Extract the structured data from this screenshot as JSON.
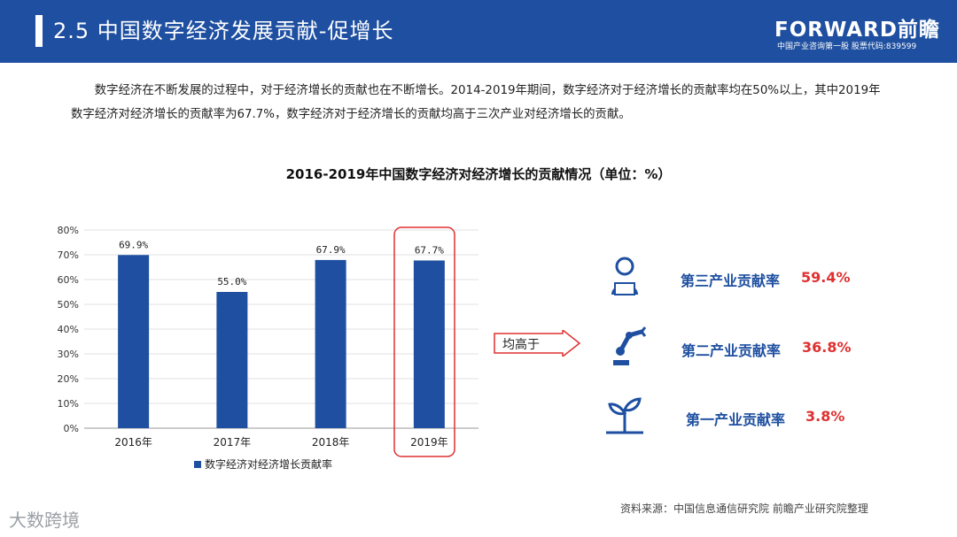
{
  "header": {
    "title": "2.5 中国数字经济发展贡献-促增长"
  },
  "logo": {
    "name": "FORWARD前瞻",
    "tagline": "中国产业咨询第一股 股票代码:839599"
  },
  "intro": "数字经济在不断发展的过程中，对于经济增长的贡献也在不断增长。2014-2019年期间，数字经济对于经济增长的贡献率均在50%以上，其中2019年数字经济对经济增长的贡献率为67.7%，数字经济对于经济增长的贡献均高于三次产业对经济增长的贡献。",
  "chart_data": {
    "type": "bar",
    "title": "2016-2019年中国数字经济对经济增长的贡献情况（单位：%）",
    "categories": [
      "2016年",
      "2017年",
      "2018年",
      "2019年"
    ],
    "series": [
      {
        "name": "数字经济对经济增长贡献率",
        "values": [
          69.9,
          55.0,
          67.9,
          67.7
        ]
      }
    ],
    "data_labels": [
      "69.9%",
      "55.0%",
      "67.9%",
      "67.7%"
    ],
    "ylim": [
      0,
      80
    ],
    "yticks": [
      "0%",
      "10%",
      "20%",
      "30%",
      "40%",
      "50%",
      "60%",
      "70%",
      "80%"
    ],
    "grid": true,
    "legend": "bottom",
    "highlight": "2019年",
    "bar_color": "#1e4fa0"
  },
  "compare": {
    "arrow_label": "均高于",
    "items": [
      {
        "label": "第三产业贡献率",
        "value": "59.4%",
        "icon": "worker-laptop-icon"
      },
      {
        "label": "第二产业贡献率",
        "value": "36.8%",
        "icon": "robot-arm-icon"
      },
      {
        "label": "第一产业贡献率",
        "value": "3.8%",
        "icon": "plant-sprout-icon"
      }
    ]
  },
  "source": "资料来源：中国信息通信研究院 前瞻产业研究院整理",
  "watermark": "大数跨境",
  "colors": {
    "primary": "#1e4fa0",
    "accent": "#e03030"
  }
}
